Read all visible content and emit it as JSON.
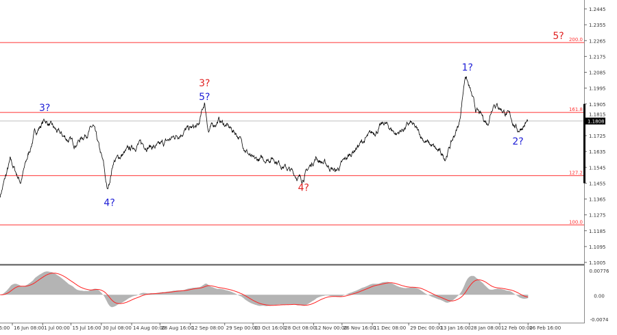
{
  "chart_data": {
    "type": "line",
    "title": "",
    "price_axis_ticks": [
      "1.2445",
      "1.2355",
      "1.2265",
      "1.2175",
      "1.2085",
      "1.1995",
      "1.1905",
      "1.1815",
      "1.1725",
      "1.1635",
      "1.1545",
      "1.1455",
      "1.1365",
      "1.1275",
      "1.1185",
      "1.1095",
      "1.1005"
    ],
    "ylim": [
      1.1005,
      1.2445
    ],
    "current_price": "1.1808",
    "x_ticks": [
      {
        "label": "16:00",
        "date": "06-10"
      },
      {
        "label": "16 Jun 08:00",
        "date": "06-16"
      },
      {
        "label": "1 Jul 00:00",
        "date": "07-01"
      },
      {
        "label": "15 Jul 16:00",
        "date": "07-15"
      },
      {
        "label": "30 Jul 08:00",
        "date": "07-30"
      },
      {
        "label": "14 Aug 00:00",
        "date": "08-14"
      },
      {
        "label": "28 Aug 16:00",
        "date": "08-28"
      },
      {
        "label": "12 Sep 08:00",
        "date": "09-12"
      },
      {
        "label": "29 Sep 00:00",
        "date": "09-29"
      },
      {
        "label": "13 Oct 16:00",
        "date": "10-13"
      },
      {
        "label": "28 Oct 08:00",
        "date": "10-28"
      },
      {
        "label": "12 Nov 00:00",
        "date": "11-12"
      },
      {
        "label": "26 Nov 16:00",
        "date": "11-26"
      },
      {
        "label": "11 Dec 08:00",
        "date": "12-11"
      },
      {
        "label": "29 Dec 00:00",
        "date": "12-29"
      },
      {
        "label": "13 Jan 16:00",
        "date": "01-13"
      },
      {
        "label": "28 Jan 08:00",
        "date": "01-28"
      },
      {
        "label": "12 Feb 00:00",
        "date": "02-12"
      },
      {
        "label": "26 Feb 16:00",
        "date": "02-26"
      }
    ],
    "price_points": [
      [
        "06-10",
        1.1385
      ],
      [
        "06-15",
        1.158
      ],
      [
        "06-20",
        1.1463
      ],
      [
        "06-27",
        1.1736
      ],
      [
        "07-02",
        1.1814
      ],
      [
        "07-09",
        1.1736
      ],
      [
        "07-17",
        1.1678
      ],
      [
        "07-26",
        1.1775
      ],
      [
        "07-31",
        1.1561
      ],
      [
        "08-02",
        1.1405
      ],
      [
        "08-05",
        1.158
      ],
      [
        "08-17",
        1.1678
      ],
      [
        "08-27",
        1.1658
      ],
      [
        "09-09",
        1.1755
      ],
      [
        "09-16",
        1.1775
      ],
      [
        "09-19",
        1.1911
      ],
      [
        "09-21",
        1.1755
      ],
      [
        "09-26",
        1.1814
      ],
      [
        "10-05",
        1.1736
      ],
      [
        "10-13",
        1.158
      ],
      [
        "10-23",
        1.16
      ],
      [
        "11-06",
        1.1475
      ],
      [
        "11-13",
        1.16
      ],
      [
        "11-23",
        1.1522
      ],
      [
        "12-03",
        1.1658
      ],
      [
        "12-17",
        1.1794
      ],
      [
        "12-23",
        1.1736
      ],
      [
        "12-30",
        1.1794
      ],
      [
        "01-06",
        1.1697
      ],
      [
        "01-16",
        1.16
      ],
      [
        "01-23",
        1.1794
      ],
      [
        "01-26",
        1.2079
      ],
      [
        "01-31",
        1.1872
      ],
      [
        "02-06",
        1.1794
      ],
      [
        "02-09",
        1.1919
      ],
      [
        "02-17",
        1.1833
      ],
      [
        "02-21",
        1.1755
      ],
      [
        "02-26",
        1.1808
      ]
    ],
    "levels": [
      {
        "label": "200.0",
        "price": 1.2254,
        "color": "#ff3030"
      },
      {
        "label": "161.8",
        "price": 1.1857,
        "color": "#ff3030"
      },
      {
        "label": "127.2",
        "price": 1.1498,
        "color": "#ff3030"
      },
      {
        "label": "100.0",
        "price": 1.1218,
        "color": "#ff3030"
      }
    ],
    "wave_labels": [
      {
        "text": "3?",
        "date": "07-02",
        "price": 1.1884,
        "color": "#1c1cd6"
      },
      {
        "text": "4?",
        "date": "08-03",
        "price": 1.1346,
        "color": "#1c1cd6"
      },
      {
        "text": "3?",
        "date": "09-19",
        "price": 1.2013,
        "color": "#e02020"
      },
      {
        "text": "5?",
        "date": "09-19",
        "price": 1.1958,
        "color": "#1c1cd6"
      },
      {
        "text": "4?",
        "date": "11-07",
        "price": 1.1432,
        "color": "#e02020"
      },
      {
        "text": "1?",
        "date": "01-27",
        "price": 1.2114,
        "color": "#1c1cd6"
      },
      {
        "text": "2?",
        "date": "02-21",
        "price": 1.1693,
        "color": "#1c1cd6"
      },
      {
        "text": "5?",
        "date": "03-13",
        "price": 1.2293,
        "color": "#e02020"
      }
    ],
    "oscillator": {
      "ticks": [
        "0.00776",
        "0.00",
        "-0.0074"
      ],
      "ylim": [
        -0.0074,
        0.00776
      ],
      "histogram_color": "#b4b4b4",
      "signal_color": "#ff2020"
    },
    "price_color": "#000000"
  }
}
